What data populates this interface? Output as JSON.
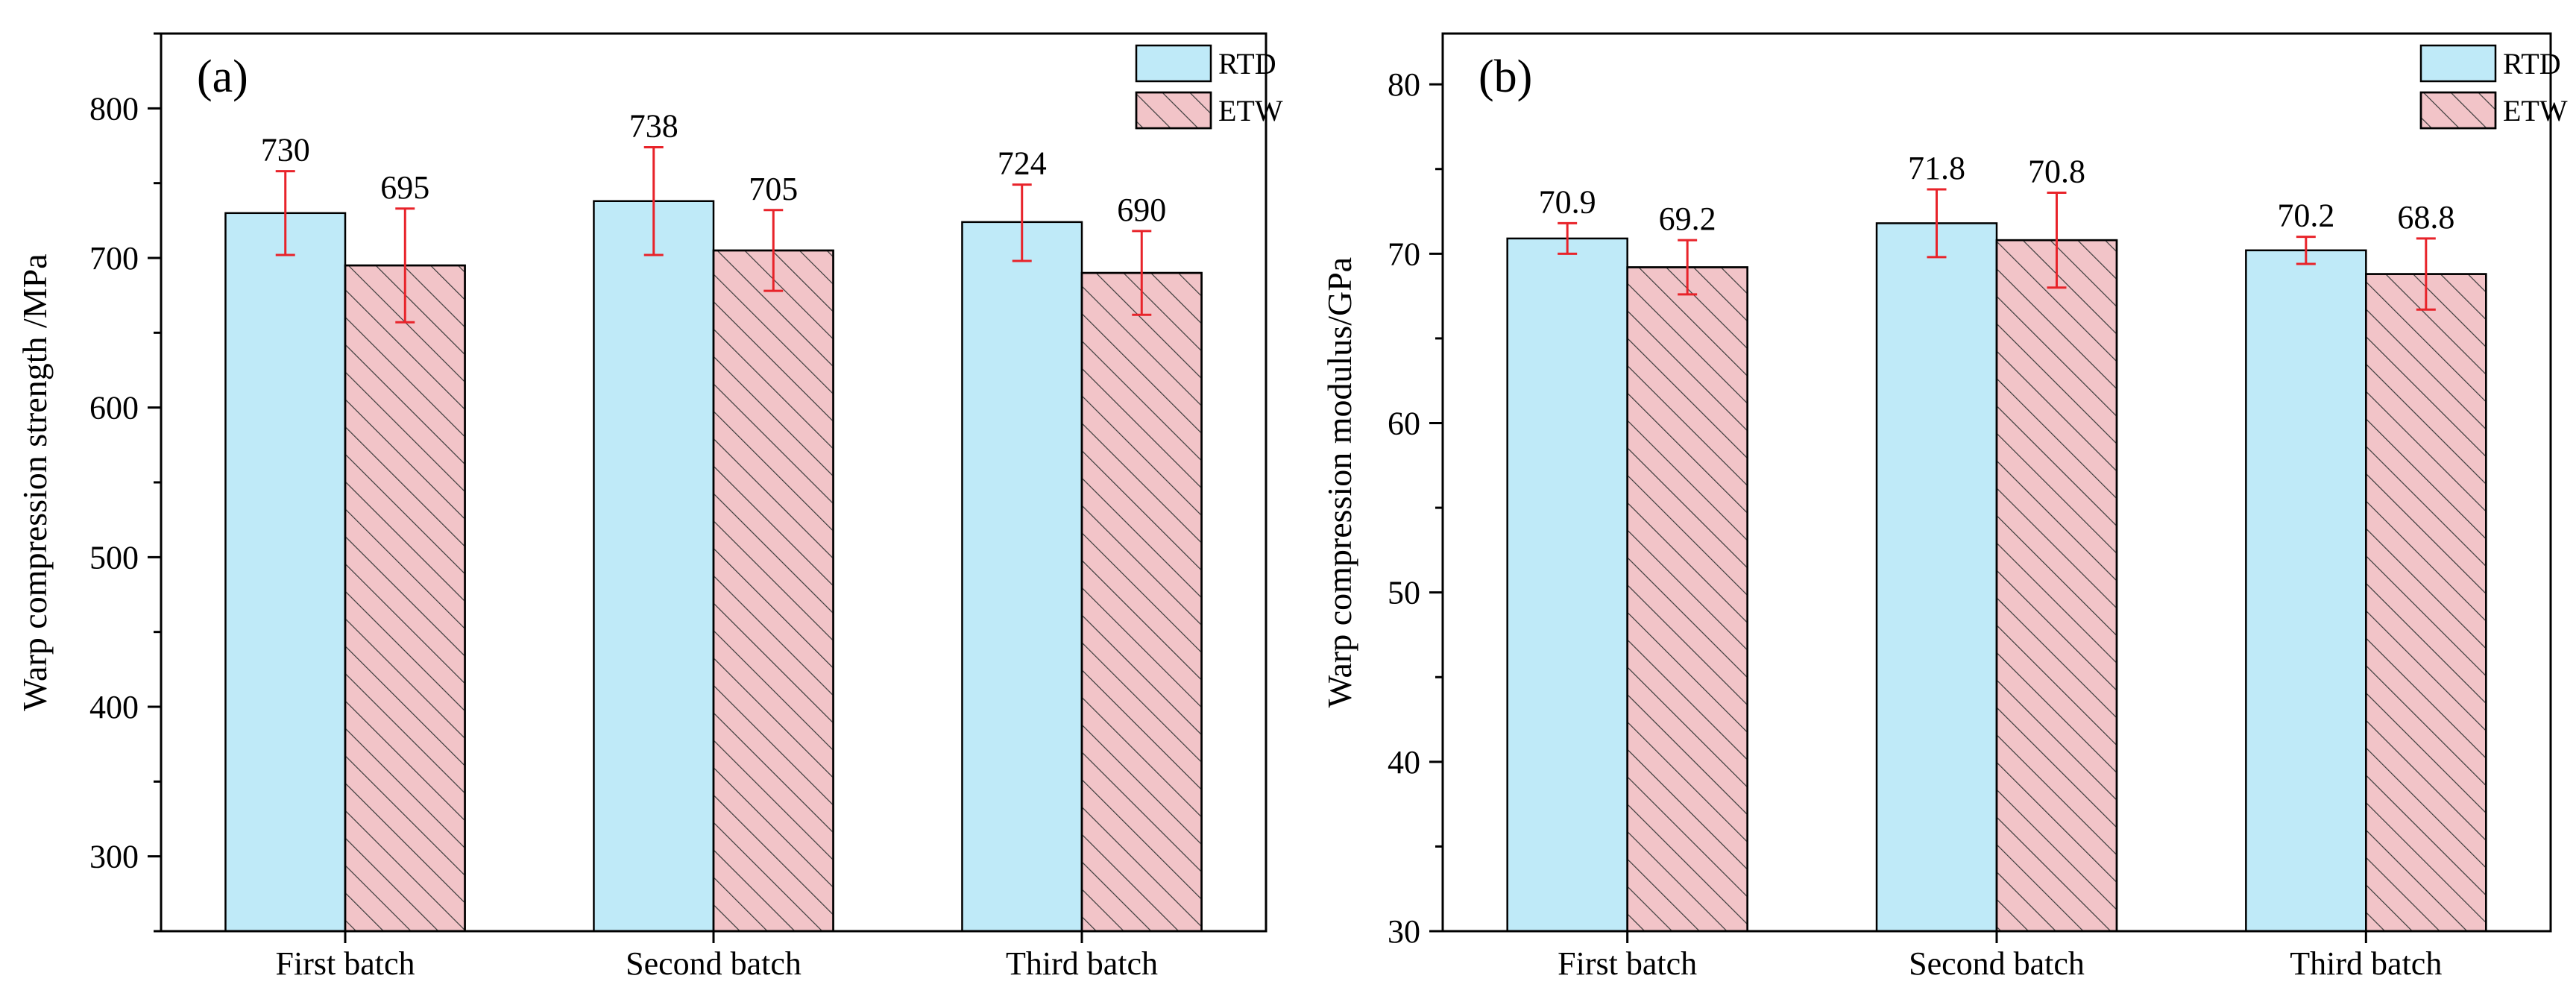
{
  "chart_data": [
    {
      "type": "bar",
      "panel": "(a)",
      "title": "",
      "xlabel": "",
      "ylabel": "Warp compression strength /MPa",
      "ylim": [
        250,
        850
      ],
      "yticks": [
        300,
        400,
        500,
        600,
        700,
        800
      ],
      "categories": [
        "First batch",
        "Second batch",
        "Third batch"
      ],
      "series": [
        {
          "name": "RTD",
          "values": [
            730,
            738,
            724
          ],
          "error_low": [
            702,
            702,
            698
          ],
          "error_high": [
            758,
            774,
            749
          ],
          "value_labels": [
            "730",
            "738",
            "724"
          ]
        },
        {
          "name": "ETW",
          "values": [
            695,
            705,
            690
          ],
          "error_low": [
            657,
            678,
            662
          ],
          "error_high": [
            733,
            732,
            718
          ],
          "value_labels": [
            "695",
            "705",
            "690"
          ]
        }
      ],
      "legend_position": "top-right"
    },
    {
      "type": "bar",
      "panel": "(b)",
      "title": "",
      "xlabel": "",
      "ylabel": "Warp compression modulus/GPa",
      "ylim": [
        30,
        83
      ],
      "yticks": [
        30,
        40,
        50,
        60,
        70,
        80
      ],
      "categories": [
        "First batch",
        "Second batch",
        "Third batch"
      ],
      "series": [
        {
          "name": "RTD",
          "values": [
            70.9,
            71.8,
            70.2
          ],
          "error_low": [
            70.0,
            69.8,
            69.4
          ],
          "error_high": [
            71.8,
            73.8,
            71.0
          ],
          "value_labels": [
            "70.9",
            "71.8",
            "70.2"
          ]
        },
        {
          "name": "ETW",
          "values": [
            69.2,
            70.8,
            68.8
          ],
          "error_low": [
            67.6,
            68.0,
            66.7
          ],
          "error_high": [
            70.8,
            73.6,
            70.9
          ],
          "value_labels": [
            "69.2",
            "70.8",
            "68.8"
          ]
        }
      ],
      "legend_position": "top-right"
    }
  ],
  "colors": {
    "rtd_fill": "#bfeaf8",
    "etw_fill": "#f2c4c8",
    "hatch": "#3a3a3a",
    "error_bar": "#e8232a",
    "axis": "#000000"
  }
}
